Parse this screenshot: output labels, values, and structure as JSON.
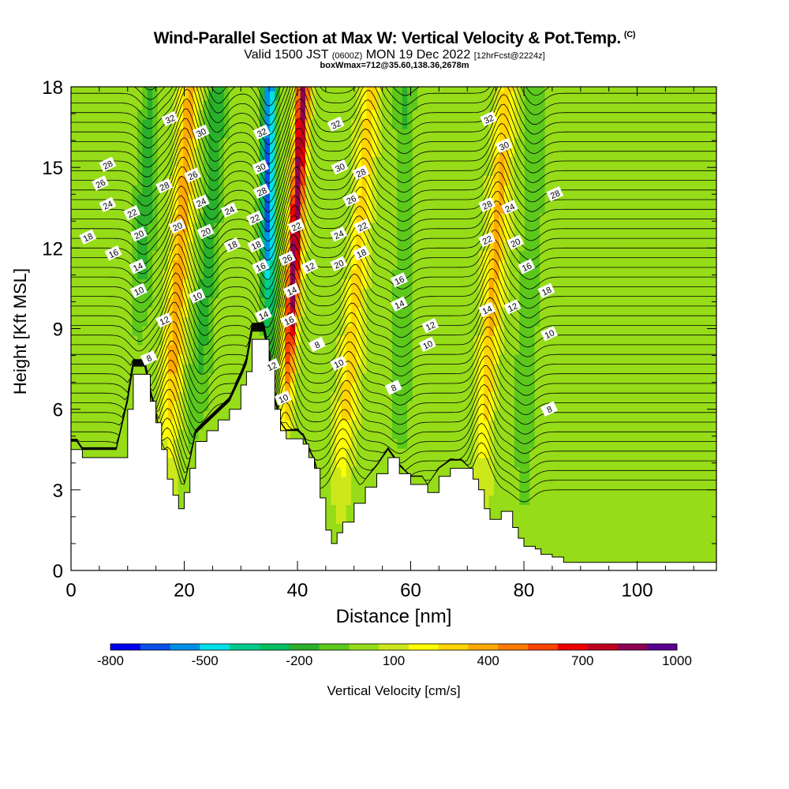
{
  "chart_data": {
    "type": "heatmap",
    "title": "Wind-Parallel Section at Max W: Vertical Velocity & Pot.Temp.",
    "title_tag": "(C)",
    "subtitle_valid": "Valid 1500 JST",
    "subtitle_z": "(0600Z)",
    "subtitle_date": "MON 19 Dec 2022",
    "subtitle_fcst": "[12hrFcst@2224z]",
    "subtitle_box": "boxWmax=712@35.60,138.36,2678m",
    "xlabel": "Distance [nm]",
    "ylabel": "Height [Kft MSL]",
    "xlim": [
      0,
      114
    ],
    "ylim": [
      0,
      18
    ],
    "xticks": [
      0,
      20,
      40,
      60,
      80,
      100
    ],
    "yticks": [
      0,
      3,
      6,
      9,
      12,
      15,
      18
    ],
    "colorbar": {
      "label": "Vertical Velocity [cm/s]",
      "tick_labels": [
        "-800",
        "-500",
        "-200",
        "100",
        "400",
        "700",
        "1000"
      ],
      "levels": [
        -800,
        -700,
        -600,
        -500,
        -400,
        -300,
        -200,
        -100,
        0,
        100,
        200,
        300,
        400,
        500,
        600,
        700,
        800,
        900,
        1000
      ],
      "colors": [
        "#0000ee",
        "#0a4fe8",
        "#0090e8",
        "#00e0e8",
        "#00cc8e",
        "#00c060",
        "#2ab02a",
        "#5cc81c",
        "#96dc18",
        "#cde81a",
        "#ffff00",
        "#ffd400",
        "#ffaa00",
        "#ff7a00",
        "#ff4400",
        "#ee0000",
        "#c00020",
        "#8e0052",
        "#5a0090"
      ]
    },
    "terrain_kft": [
      [
        0,
        4.5
      ],
      [
        1,
        4.5
      ],
      [
        2,
        4.2
      ],
      [
        4,
        4.2
      ],
      [
        6,
        4.2
      ],
      [
        8,
        4.2
      ],
      [
        10,
        6.0
      ],
      [
        11,
        7.3
      ],
      [
        13,
        7.3
      ],
      [
        14,
        6.3
      ],
      [
        15,
        5.5
      ],
      [
        16,
        4.5
      ],
      [
        17,
        3.4
      ],
      [
        18,
        2.8
      ],
      [
        19,
        2.3
      ],
      [
        20,
        2.9
      ],
      [
        21,
        3.8
      ],
      [
        22,
        4.8
      ],
      [
        24,
        5.2
      ],
      [
        26,
        5.6
      ],
      [
        28,
        6.0
      ],
      [
        30,
        6.9
      ],
      [
        31,
        7.4
      ],
      [
        32,
        8.6
      ],
      [
        34,
        8.6
      ],
      [
        35,
        7.6
      ],
      [
        36,
        6.0
      ],
      [
        37,
        5.2
      ],
      [
        38,
        4.9
      ],
      [
        39,
        4.9
      ],
      [
        40,
        4.9
      ],
      [
        41,
        4.7
      ],
      [
        42,
        4.2
      ],
      [
        43,
        3.8
      ],
      [
        44,
        2.7
      ],
      [
        45,
        1.5
      ],
      [
        46,
        1.0
      ],
      [
        47,
        1.4
      ],
      [
        48,
        1.8
      ],
      [
        50,
        2.5
      ],
      [
        52,
        3.1
      ],
      [
        54,
        3.6
      ],
      [
        56,
        4.2
      ],
      [
        58,
        3.6
      ],
      [
        60,
        3.2
      ],
      [
        62,
        3.2
      ],
      [
        63,
        2.9
      ],
      [
        65,
        3.5
      ],
      [
        67,
        3.8
      ],
      [
        69,
        3.8
      ],
      [
        71,
        3.4
      ],
      [
        72,
        3.0
      ],
      [
        73,
        2.3
      ],
      [
        74,
        1.9
      ],
      [
        76,
        2.2
      ],
      [
        78,
        1.6
      ],
      [
        79,
        1.2
      ],
      [
        80,
        0.9
      ],
      [
        82,
        0.8
      ],
      [
        83,
        0.6
      ],
      [
        85,
        0.5
      ],
      [
        87,
        0.3
      ],
      [
        114,
        0.3
      ]
    ],
    "updraft_bands": [
      {
        "base_x": 17.0,
        "top_x": 21.0,
        "w_cm_s": 400
      },
      {
        "base_x": 37.5,
        "top_x": 41.0,
        "w_cm_s": 900
      },
      {
        "base_x": 48.0,
        "top_x": 53.0,
        "w_cm_s": 300
      },
      {
        "base_x": 72.5,
        "top_x": 77.0,
        "w_cm_s": 350
      }
    ],
    "downdraft_bands": [
      {
        "base_x": 34.5,
        "top_x": 35.0,
        "w_cm_s": -700
      },
      {
        "base_x": 22.0,
        "top_x": 26.0,
        "w_cm_s": -250
      },
      {
        "base_x": 11.0,
        "top_x": 14.0,
        "w_cm_s": -200
      },
      {
        "base_x": 58.0,
        "top_x": 59.0,
        "w_cm_s": -150
      },
      {
        "base_x": 80.0,
        "top_x": 82.0,
        "w_cm_s": -150
      }
    ],
    "theta_labels": [
      {
        "x": 17.5,
        "y": 16.8,
        "v": "32"
      },
      {
        "x": 23,
        "y": 16.3,
        "v": "30"
      },
      {
        "x": 6.5,
        "y": 15.1,
        "v": "28"
      },
      {
        "x": 5.2,
        "y": 14.4,
        "v": "26"
      },
      {
        "x": 6.5,
        "y": 13.6,
        "v": "24"
      },
      {
        "x": 10.8,
        "y": 13.3,
        "v": "22"
      },
      {
        "x": 3.0,
        "y": 12.4,
        "v": "18"
      },
      {
        "x": 12.0,
        "y": 12.5,
        "v": "20"
      },
      {
        "x": 7.5,
        "y": 11.8,
        "v": "16"
      },
      {
        "x": 11.8,
        "y": 11.3,
        "v": "14"
      },
      {
        "x": 12.0,
        "y": 10.4,
        "v": "10"
      },
      {
        "x": 16.5,
        "y": 14.3,
        "v": "28"
      },
      {
        "x": 21.5,
        "y": 14.7,
        "v": "26"
      },
      {
        "x": 23.0,
        "y": 13.7,
        "v": "24"
      },
      {
        "x": 18.8,
        "y": 12.8,
        "v": "20"
      },
      {
        "x": 23.8,
        "y": 12.6,
        "v": "20"
      },
      {
        "x": 28.0,
        "y": 13.4,
        "v": "24"
      },
      {
        "x": 28.5,
        "y": 12.1,
        "v": "18"
      },
      {
        "x": 22.3,
        "y": 10.2,
        "v": "10"
      },
      {
        "x": 16.5,
        "y": 9.3,
        "v": "12"
      },
      {
        "x": 13.8,
        "y": 7.9,
        "v": "8"
      },
      {
        "x": 33.7,
        "y": 16.3,
        "v": "32"
      },
      {
        "x": 33.5,
        "y": 15.0,
        "v": "30"
      },
      {
        "x": 33.7,
        "y": 14.1,
        "v": "28"
      },
      {
        "x": 32.5,
        "y": 13.1,
        "v": "22"
      },
      {
        "x": 32.7,
        "y": 12.1,
        "v": "18"
      },
      {
        "x": 33.5,
        "y": 11.3,
        "v": "16"
      },
      {
        "x": 34.0,
        "y": 9.5,
        "v": "14"
      },
      {
        "x": 35.5,
        "y": 7.6,
        "v": "12"
      },
      {
        "x": 37.5,
        "y": 6.4,
        "v": "10"
      },
      {
        "x": 38.5,
        "y": 9.3,
        "v": "16"
      },
      {
        "x": 39.0,
        "y": 10.4,
        "v": "14"
      },
      {
        "x": 38.2,
        "y": 11.6,
        "v": "26"
      },
      {
        "x": 39.8,
        "y": 12.8,
        "v": "22"
      },
      {
        "x": 42.2,
        "y": 11.3,
        "v": "12"
      },
      {
        "x": 43.5,
        "y": 8.4,
        "v": "8"
      },
      {
        "x": 46.8,
        "y": 16.6,
        "v": "32"
      },
      {
        "x": 47.5,
        "y": 15.0,
        "v": "30"
      },
      {
        "x": 51.2,
        "y": 14.8,
        "v": "28"
      },
      {
        "x": 49.5,
        "y": 13.8,
        "v": "26"
      },
      {
        "x": 51.5,
        "y": 12.8,
        "v": "22"
      },
      {
        "x": 47.3,
        "y": 12.5,
        "v": "24"
      },
      {
        "x": 51.3,
        "y": 11.8,
        "v": "18"
      },
      {
        "x": 47.3,
        "y": 11.4,
        "v": "20"
      },
      {
        "x": 47.3,
        "y": 7.7,
        "v": "10"
      },
      {
        "x": 58.0,
        "y": 10.8,
        "v": "16"
      },
      {
        "x": 58.0,
        "y": 9.9,
        "v": "14"
      },
      {
        "x": 63.5,
        "y": 9.1,
        "v": "12"
      },
      {
        "x": 63.0,
        "y": 8.4,
        "v": "10"
      },
      {
        "x": 57.0,
        "y": 6.8,
        "v": "8"
      },
      {
        "x": 73.8,
        "y": 16.8,
        "v": "32"
      },
      {
        "x": 76.5,
        "y": 15.8,
        "v": "30"
      },
      {
        "x": 73.5,
        "y": 13.6,
        "v": "28"
      },
      {
        "x": 77.5,
        "y": 13.5,
        "v": "24"
      },
      {
        "x": 73.5,
        "y": 12.3,
        "v": "22"
      },
      {
        "x": 78.5,
        "y": 12.2,
        "v": "20"
      },
      {
        "x": 80.5,
        "y": 11.3,
        "v": "16"
      },
      {
        "x": 73.5,
        "y": 9.7,
        "v": "14"
      },
      {
        "x": 78.0,
        "y": 9.8,
        "v": "12"
      },
      {
        "x": 84.0,
        "y": 10.4,
        "v": "18"
      },
      {
        "x": 84.5,
        "y": 8.8,
        "v": "10"
      },
      {
        "x": 84.5,
        "y": 6.0,
        "v": "8"
      },
      {
        "x": 85.5,
        "y": 14.0,
        "v": "28"
      }
    ]
  }
}
